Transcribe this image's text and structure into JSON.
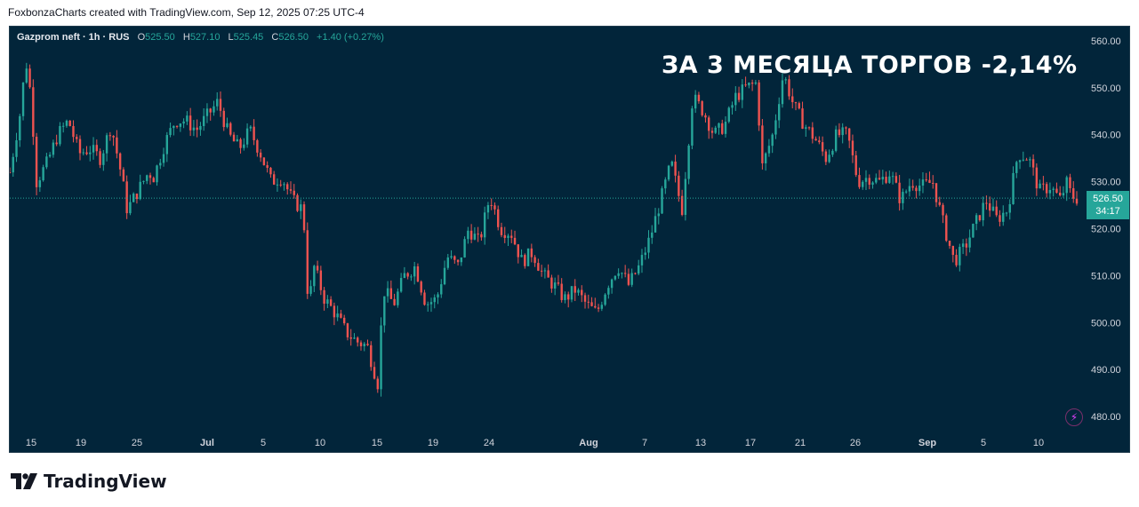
{
  "header": {
    "attribution": "FoxbonzaCharts created with TradingView.com, Sep 12, 2025 07:25 UTC-4"
  },
  "legend": {
    "symbol": "Gazprom neft · 1h · RUS",
    "open_label": "O",
    "open_value": "525.50",
    "high_label": "H",
    "high_value": "527.10",
    "low_label": "L",
    "low_value": "525.45",
    "close_label": "C",
    "close_value": "526.50",
    "change": "+1.40 (+0.27%)"
  },
  "overlay_title": "ЗА 3 МЕСЯЦА ТОРГОВ -2,14%",
  "price_badge": {
    "price": "526.50",
    "countdown": "34:17"
  },
  "footer": {
    "brand": "TradingView"
  },
  "icons": {
    "bolt": "lightning-bolt-icon",
    "logo": "tradingview-logo-icon"
  },
  "colors": {
    "background": "#02253a",
    "up": "#26a69a",
    "down": "#ef5350",
    "axis_text": "#d1d4dc",
    "last_price_line": "#26a69a"
  },
  "chart_data": {
    "type": "candlestick",
    "title": "ЗА 3 МЕСЯЦА ТОРГОВ -2,14%",
    "symbol": "Gazprom neft",
    "interval": "1h",
    "ylim": [
      477,
      563
    ],
    "y_ticks": [
      560,
      550,
      540,
      530,
      520,
      510,
      500,
      490,
      480
    ],
    "y_tick_labels": [
      "560.00",
      "550.00",
      "540.00",
      "530.00",
      "520.00",
      "510.00",
      "500.00",
      "490.00",
      "480.00"
    ],
    "x_tick_labels": [
      "15",
      "19",
      "25",
      "Jul",
      "5",
      "10",
      "15",
      "19",
      "24",
      "Aug",
      "7",
      "13",
      "17",
      "21",
      "26",
      "Sep",
      "5",
      "10"
    ],
    "x_tick_bold": [
      "Jul",
      "Aug",
      "Sep"
    ],
    "last_price": 526.5,
    "series_x_range": [
      0,
      100
    ],
    "series_close": [
      [
        0,
        532
      ],
      [
        1,
        545
      ],
      [
        1.5,
        556
      ],
      [
        2,
        548
      ],
      [
        2.5,
        530
      ],
      [
        3.5,
        534
      ],
      [
        4.5,
        540
      ],
      [
        5.5,
        543
      ],
      [
        6.5,
        536
      ],
      [
        7.5,
        537
      ],
      [
        8.5,
        535
      ],
      [
        9.5,
        542
      ],
      [
        10.5,
        531
      ],
      [
        11,
        524
      ],
      [
        12,
        528
      ],
      [
        13,
        532
      ],
      [
        13.5,
        531
      ],
      [
        14.5,
        538
      ],
      [
        15.5,
        543
      ],
      [
        16.5,
        543
      ],
      [
        17.5,
        541
      ],
      [
        18.5,
        544
      ],
      [
        19.5,
        547
      ],
      [
        20.5,
        540
      ],
      [
        21.5,
        537
      ],
      [
        22.5,
        541
      ],
      [
        23.5,
        536
      ],
      [
        24.5,
        530
      ],
      [
        25.5,
        531
      ],
      [
        26.5,
        526
      ],
      [
        27.5,
        524
      ],
      [
        28,
        503
      ],
      [
        28.5,
        512
      ],
      [
        29.5,
        505
      ],
      [
        30.5,
        502
      ],
      [
        31.5,
        498
      ],
      [
        32.5,
        496
      ],
      [
        33.5,
        495
      ],
      [
        34.5,
        487
      ],
      [
        35,
        507
      ],
      [
        36,
        504
      ],
      [
        37,
        510
      ],
      [
        38,
        512
      ],
      [
        39,
        504
      ],
      [
        40,
        505
      ],
      [
        41,
        514
      ],
      [
        42,
        512
      ],
      [
        43,
        520
      ],
      [
        44,
        517
      ],
      [
        45,
        527
      ],
      [
        46,
        520
      ],
      [
        47,
        519
      ],
      [
        48,
        513
      ],
      [
        49,
        515
      ],
      [
        50,
        510
      ],
      [
        51,
        508
      ],
      [
        52,
        505
      ],
      [
        53,
        507
      ],
      [
        54,
        504
      ],
      [
        55,
        502
      ],
      [
        56,
        508
      ],
      [
        57,
        512
      ],
      [
        58,
        508
      ],
      [
        59,
        512
      ],
      [
        60,
        518
      ],
      [
        61,
        526
      ],
      [
        62,
        534
      ],
      [
        63,
        524
      ],
      [
        64,
        548
      ],
      [
        65,
        545
      ],
      [
        66,
        540
      ],
      [
        67,
        542
      ],
      [
        68,
        548
      ],
      [
        69,
        550
      ],
      [
        70,
        551
      ],
      [
        70.5,
        533
      ],
      [
        71.5,
        540
      ],
      [
        72.5,
        553
      ],
      [
        73.5,
        546
      ],
      [
        74.5,
        542
      ],
      [
        75.5,
        539
      ],
      [
        76.5,
        535
      ],
      [
        77.5,
        540
      ],
      [
        78.5,
        540
      ],
      [
        79.5,
        530
      ],
      [
        80.5,
        531
      ],
      [
        81.5,
        530
      ],
      [
        82.5,
        532
      ],
      [
        83.5,
        526
      ],
      [
        84.5,
        530
      ],
      [
        85.5,
        529
      ],
      [
        86.5,
        530
      ],
      [
        87.5,
        521
      ],
      [
        88.5,
        513
      ],
      [
        89.5,
        516
      ],
      [
        90.5,
        521
      ],
      [
        91.5,
        526
      ],
      [
        92.5,
        522
      ],
      [
        93.5,
        524
      ],
      [
        94.5,
        536
      ],
      [
        95.5,
        535
      ],
      [
        96.5,
        528
      ],
      [
        97.5,
        529
      ],
      [
        98.5,
        526
      ],
      [
        99,
        530
      ],
      [
        99.5,
        527
      ],
      [
        100,
        526.5
      ]
    ]
  }
}
